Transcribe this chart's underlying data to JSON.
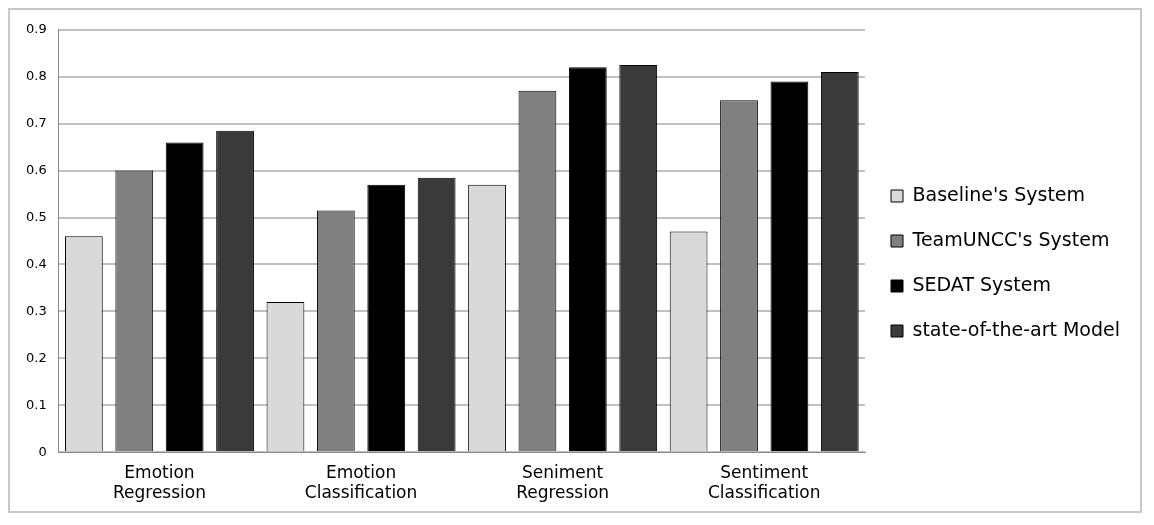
{
  "chart_data": {
    "type": "bar",
    "categories": [
      "Emotion Regression",
      "Emotion Classification",
      "Seniment Regression",
      "Sentiment Classification"
    ],
    "series": [
      {
        "name": "Baseline's System",
        "color": "#d9d9d9",
        "values": [
          0.46,
          0.32,
          0.57,
          0.47
        ]
      },
      {
        "name": "TeamUNCC's System",
        "color": "#808080",
        "values": [
          0.6,
          0.515,
          0.77,
          0.75
        ]
      },
      {
        "name": "SEDAT System",
        "color": "#000000",
        "values": [
          0.66,
          0.57,
          0.82,
          0.79
        ]
      },
      {
        "name": "state-of-the-art Model",
        "color": "#3a3a3a",
        "values": [
          0.685,
          0.585,
          0.825,
          0.81
        ]
      }
    ],
    "ylim": [
      0,
      0.9
    ],
    "yticks": [
      0,
      0.1,
      0.2,
      0.3,
      0.4,
      0.5,
      0.6,
      0.7,
      0.8,
      0.9
    ],
    "grid": "y",
    "legend": "right"
  }
}
